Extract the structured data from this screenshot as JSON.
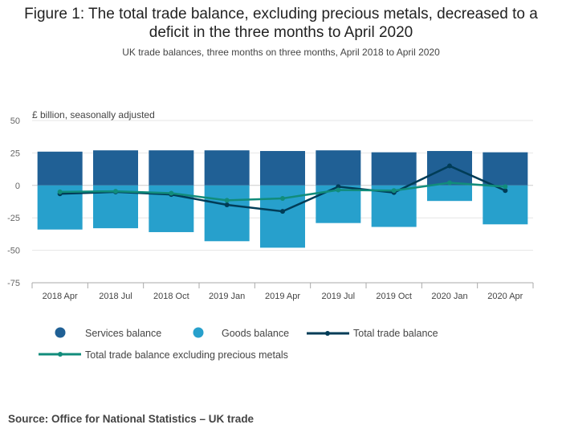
{
  "title_line1": "Figure 1: The total trade balance, excluding precious metals, decreased to a",
  "title_line2": "deficit in the three months to April 2020",
  "subtitle": "UK trade balances, three months on three months, April 2018 to April 2020",
  "source": "Source: Office for National Statistics – UK trade",
  "colors": {
    "services": "#206095",
    "goods": "#27a0cc",
    "total": "#003c57",
    "excl": "#118c7b",
    "grid": "#e6e6e6",
    "axis": "#aaaaaa"
  },
  "chart_data": {
    "type": "bar",
    "ylabel": "£ billion, seasonally adjusted",
    "ylim": [
      -75,
      50
    ],
    "yticks": [
      50,
      25,
      0,
      -25,
      -50,
      -75
    ],
    "ytick_labels": [
      "50",
      "25",
      "0",
      "-25",
      "-50",
      "-75"
    ],
    "categories": [
      "2018 Apr",
      "2018 Jul",
      "2018 Oct",
      "2019 Jan",
      "2019 Apr",
      "2019 Jul",
      "2019 Oct",
      "2020 Jan",
      "2020 Apr"
    ],
    "series": [
      {
        "name": "Services balance",
        "kind": "bar",
        "values": [
          26,
          27,
          27,
          27,
          26.5,
          27,
          25.5,
          26.5,
          25.5
        ]
      },
      {
        "name": "Goods balance",
        "kind": "bar",
        "values": [
          -34,
          -33,
          -36,
          -43,
          -48,
          -29,
          -32,
          -12,
          -30
        ]
      },
      {
        "name": "Total trade balance",
        "kind": "line",
        "values": [
          -6.5,
          -5,
          -7,
          -15,
          -20,
          -1,
          -5.5,
          15,
          -4
        ]
      },
      {
        "name": "Total trade balance excluding precious metals",
        "kind": "line",
        "values": [
          -5,
          -4.5,
          -6,
          -11.5,
          -10,
          -3.5,
          -4,
          2,
          -1
        ]
      }
    ]
  }
}
